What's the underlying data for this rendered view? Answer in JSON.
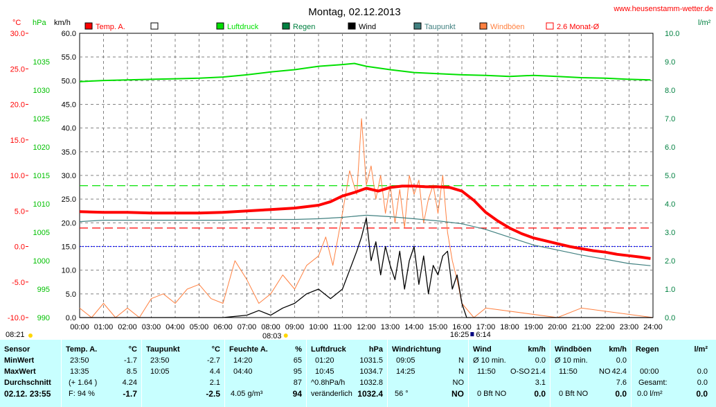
{
  "header": {
    "title": "Montag, 02.12.2013",
    "website": "www.heusenstamm-wetter.de",
    "unit_temp": "°C",
    "unit_hpa": "hPa",
    "unit_kmh": "km/h",
    "unit_rain": "l/m²"
  },
  "colors": {
    "temp": "#ff0000",
    "pressure": "#00e000",
    "rain": "#008040",
    "wind": "#000000",
    "dewpoint": "#408080",
    "gust": "#ff8040",
    "avg": "#ff0000",
    "table_bg": "#c8ffff"
  },
  "legend": [
    {
      "label": "Temp. A.",
      "color": "#ff0000",
      "fill": true
    },
    {
      "label": "",
      "color": "#000000",
      "fill": false
    },
    {
      "label": "Luftdruck",
      "color": "#00e000",
      "fill": true
    },
    {
      "label": "Regen",
      "color": "#008040",
      "fill": true
    },
    {
      "label": "Wind",
      "color": "#000000",
      "fill": true
    },
    {
      "label": "Taupunkt",
      "color": "#408080",
      "fill": true
    },
    {
      "label": "Windböen",
      "color": "#ff8040",
      "fill": true
    },
    {
      "label": "2.6 Monat-Ø",
      "color": "#ff0000",
      "fill": false
    }
  ],
  "chart_data": {
    "type": "line",
    "title": "Montag, 02.12.2013",
    "x_ticks": [
      "00:00",
      "01:00",
      "02:00",
      "03:00",
      "04:00",
      "05:00",
      "06:00",
      "07:00",
      "08:00",
      "09:00",
      "10:00",
      "11:00",
      "12:00",
      "13:00",
      "14:00",
      "15:00",
      "16:00",
      "17:00",
      "18:00",
      "19:00",
      "20:00",
      "21:00",
      "22:00",
      "23:00",
      "24:00"
    ],
    "axes": {
      "temp": {
        "unit": "°C",
        "range": [
          -10,
          30
        ],
        "ticks": [
          "30.0",
          "25.0",
          "20.0",
          "15.0",
          "10.0",
          "5.0",
          "0.0",
          "-5.0",
          "-10.0"
        ]
      },
      "pressure": {
        "unit": "hPa",
        "range": [
          990,
          1040
        ],
        "ticks": [
          "1035",
          "1030",
          "1025",
          "1020",
          "1015",
          "1010",
          "1005",
          "1000",
          "995",
          "990"
        ]
      },
      "wind": {
        "unit": "km/h",
        "range": [
          0,
          60
        ],
        "ticks": [
          "60.0",
          "55.0",
          "50.0",
          "45.0",
          "40.0",
          "35.0",
          "30.0",
          "25.0",
          "20.0",
          "15.0",
          "10.0",
          "5.0",
          "0.0"
        ]
      },
      "rain": {
        "unit": "l/m²",
        "range": [
          0,
          10
        ],
        "ticks": [
          "10.0",
          "9.0",
          "8.0",
          "7.0",
          "6.0",
          "5.0",
          "4.0",
          "3.0",
          "2.0",
          "1.0",
          "0.0"
        ]
      }
    },
    "reference_lines": [
      {
        "name": "Luftdruck ref",
        "axis": "pressure",
        "value": 1013.2,
        "color": "#00e000"
      },
      {
        "name": "2.6 Monat-Ø",
        "axis": "temp",
        "value": 2.6,
        "color": "#ff0000"
      },
      {
        "name": "0 °C",
        "axis": "temp",
        "value": 0,
        "color": "#0000ff"
      }
    ],
    "sun": {
      "sunrise": "08:03",
      "sunset": "16:25",
      "prev_label": "08:21",
      "next_label": "6:14"
    },
    "series": [
      {
        "name": "Temp. A.",
        "axis": "temp",
        "color": "#ff0000",
        "x": [
          0,
          1,
          2,
          3,
          4,
          5,
          6,
          7,
          8,
          9,
          10,
          10.5,
          11,
          11.5,
          12,
          12.5,
          13,
          13.5,
          14,
          14.5,
          15,
          15.5,
          16,
          16.5,
          17,
          17.5,
          18,
          18.5,
          19,
          19.5,
          20,
          20.5,
          21,
          21.5,
          22,
          22.5,
          23,
          23.5,
          23.9
        ],
        "y": [
          4.9,
          4.8,
          4.8,
          4.7,
          4.7,
          4.7,
          4.8,
          5.0,
          5.2,
          5.4,
          5.8,
          6.3,
          7.1,
          7.6,
          8.2,
          7.8,
          8.3,
          8.5,
          8.5,
          8.4,
          8.4,
          8.3,
          7.8,
          6.5,
          4.8,
          3.6,
          2.6,
          1.8,
          1.2,
          0.8,
          0.4,
          0.0,
          -0.3,
          -0.6,
          -0.8,
          -1.1,
          -1.3,
          -1.5,
          -1.7
        ]
      },
      {
        "name": "Taupunkt",
        "axis": "temp",
        "color": "#408080",
        "x": [
          0,
          1,
          2,
          3,
          4,
          5,
          6,
          7,
          8,
          9,
          10,
          11,
          12,
          13,
          14,
          15,
          16,
          17,
          18,
          19,
          20,
          21,
          22,
          23,
          23.9
        ],
        "y": [
          3.5,
          3.7,
          3.7,
          3.7,
          3.7,
          3.7,
          3.7,
          3.8,
          3.8,
          3.8,
          3.9,
          4.1,
          4.4,
          4.2,
          3.9,
          3.6,
          3.2,
          2.4,
          1.3,
          0.2,
          -0.5,
          -1.2,
          -1.8,
          -2.4,
          -2.7
        ]
      },
      {
        "name": "Luftdruck",
        "axis": "pressure",
        "color": "#00e000",
        "x": [
          0,
          1,
          2,
          3,
          4,
          5,
          6,
          7,
          8,
          9,
          10,
          11,
          11.5,
          12,
          13,
          14,
          15,
          16,
          17,
          18,
          19,
          20,
          21,
          22,
          23,
          23.9
        ],
        "y": [
          1031.5,
          1031.7,
          1031.8,
          1031.9,
          1032.0,
          1032.1,
          1032.3,
          1032.7,
          1033.2,
          1033.6,
          1034.2,
          1034.5,
          1034.7,
          1034.2,
          1033.6,
          1033.1,
          1032.9,
          1032.7,
          1032.6,
          1032.4,
          1032.6,
          1032.4,
          1032.2,
          1032.1,
          1031.9,
          1031.8
        ]
      },
      {
        "name": "Wind",
        "axis": "wind",
        "color": "#000000",
        "x": [
          0,
          6,
          7,
          7.5,
          8,
          8.5,
          9,
          9.5,
          10,
          10.5,
          11,
          11.3,
          11.6,
          11.8,
          12,
          12.2,
          12.4,
          12.6,
          12.8,
          13,
          13.2,
          13.4,
          13.6,
          13.8,
          14,
          14.2,
          14.4,
          14.6,
          14.8,
          15,
          15.2,
          15.4,
          15.6,
          15.8,
          16,
          16.2,
          16.5,
          24
        ],
        "y": [
          0,
          0,
          0.5,
          1.5,
          0.5,
          2,
          3,
          5,
          6,
          4,
          6,
          10,
          14,
          17,
          21,
          12,
          16,
          9,
          15,
          11,
          8,
          14,
          6,
          12,
          15,
          7,
          13,
          5,
          11,
          9,
          13,
          14,
          6,
          9,
          3,
          0,
          0,
          0
        ]
      },
      {
        "name": "Windböen",
        "axis": "wind",
        "color": "#ff8040",
        "x": [
          0,
          0.5,
          1,
          1.5,
          2,
          2.5,
          3,
          3.5,
          4,
          4.5,
          5,
          5.5,
          6,
          6.5,
          7,
          7.5,
          8,
          8.5,
          9,
          9.5,
          10,
          10.3,
          10.6,
          11,
          11.3,
          11.6,
          11.8,
          12,
          12.2,
          12.4,
          12.6,
          12.8,
          13,
          13.2,
          13.4,
          13.6,
          13.8,
          14,
          14.2,
          14.4,
          14.6,
          14.8,
          15,
          15.2,
          15.4,
          15.6,
          15.8,
          16,
          16.5,
          17,
          20,
          21,
          24
        ],
        "y": [
          2,
          0,
          3,
          0,
          2,
          0,
          4,
          5,
          3,
          6,
          7,
          4,
          3,
          12,
          8,
          3,
          5,
          9,
          6,
          11,
          13,
          17,
          11,
          22,
          31,
          26,
          42,
          28,
          32,
          25,
          30,
          22,
          28,
          20,
          27,
          19,
          30,
          26,
          29,
          20,
          25,
          28,
          22,
          30,
          18,
          12,
          8,
          3,
          0,
          2,
          0,
          2,
          0
        ]
      }
    ]
  },
  "table": {
    "headers": {
      "sensor": "Sensor",
      "temp": "Temp. A.",
      "temp_unit": "°C",
      "dew": "Taupunkt",
      "dew_unit": "°C",
      "hum": "Feuchte A.",
      "hum_unit": "%",
      "press": "Luftdruck",
      "press_unit": "hPa",
      "dir": "Windrichtung",
      "wind": "Wind",
      "wind_unit": "km/h",
      "gust": "Windböen",
      "gust_unit": "km/h",
      "rain": "Regen",
      "rain_unit": "l/m²"
    },
    "rows": {
      "min_label": "MinWert",
      "max_label": "MaxWert",
      "avg_label": "Durchschnitt",
      "current_label": "02.12. 23:55"
    },
    "temp": {
      "min_time": "23:50",
      "min": "-1.7",
      "max_time": "13:35",
      "max": "8.5",
      "avg_extra": "(+ 1.64 )",
      "avg": "4.24",
      "current_extra": "F: 94 %",
      "current": "-1.7"
    },
    "dew": {
      "min_time": "23:50",
      "min": "-2.7",
      "max_time": "10:05",
      "max": "4.4",
      "avg": "2.1",
      "current": "-2.5"
    },
    "hum": {
      "min_time": "14:20",
      "min": "65",
      "max_time": "04:40",
      "max": "95",
      "avg": "87",
      "current_extra": "4.05 g/m³",
      "current": "94"
    },
    "press": {
      "min_time": "01:20",
      "min": "1031.5",
      "max_time": "10:45",
      "max": "1034.7",
      "avg_extra": "^0.8hPa/h",
      "avg": "1032.8",
      "current_extra": "veränderlich",
      "current": "1032.4"
    },
    "dir": {
      "min_time": "09:05",
      "min": "N",
      "max_time": "14:25",
      "max": "N",
      "avg": "NO",
      "current_extra": "56 °",
      "current": "NO"
    },
    "wind": {
      "min_time": "Ø 10 min.",
      "min": "0.0",
      "max_time": "11:50",
      "max_dir": "O-SO",
      "max": "21.4",
      "avg": "3.1",
      "current_extra": "0 Bft NO",
      "current": "0.0"
    },
    "gust": {
      "min_time": "Ø 10 min.",
      "min": "0.0",
      "max_time": "11:50",
      "max_dir": "NO",
      "max": "42.4",
      "avg": "7.6",
      "current_extra": "0 Bft NO",
      "current": "0.0"
    },
    "rain": {
      "max_time": "00:00",
      "max": "0.0",
      "avg_extra": "Gesamt:",
      "avg": "0.0",
      "current_extra": "0.0 l/m²",
      "current": "0.0"
    }
  }
}
